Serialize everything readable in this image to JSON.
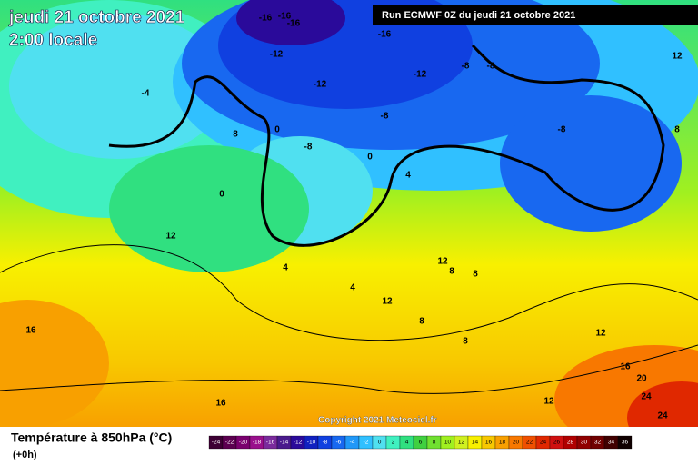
{
  "header": {
    "date": "jeudi 21 octobre 2021",
    "time": "2:00 locale",
    "run": "Run ECMWF 0Z du jeudi 21 octobre 2021"
  },
  "copyright": "Copyright 2021 Meteociel.fr",
  "legend": {
    "title": "Température à 850hPa (°C)",
    "step": "(+0h)",
    "ticks": [
      -24,
      -22,
      -20,
      -18,
      -16,
      -14,
      -12,
      -10,
      -8,
      -6,
      -4,
      -2,
      0,
      2,
      4,
      6,
      8,
      10,
      12,
      14,
      16,
      18,
      20,
      22,
      24,
      26,
      28,
      30,
      32,
      34,
      36
    ],
    "colors": [
      "#3d0033",
      "#5c0050",
      "#7a006e",
      "#99108c",
      "#7a2a9c",
      "#4a1a8c",
      "#2a0a9a",
      "#1020c0",
      "#1040e0",
      "#1868f0",
      "#2098f8",
      "#30c0ff",
      "#50e0f0",
      "#40f0c0",
      "#30e080",
      "#40d040",
      "#70e030",
      "#a0f020",
      "#d0f020",
      "#f8f000",
      "#f8c800",
      "#f8a000",
      "#f87800",
      "#f05000",
      "#e02800",
      "#d01010",
      "#b00000",
      "#900000",
      "#700000",
      "#400000",
      "#100000"
    ]
  },
  "contour_labels": [
    "-16",
    "-16",
    "-16",
    "-16",
    "-12",
    "-12",
    "-12",
    "-8",
    "-8",
    "-8",
    "-8",
    "-8",
    "-4",
    "0",
    "0",
    "0",
    "8",
    "12",
    "8",
    "4",
    "4",
    "4",
    "12",
    "12",
    "8",
    "8",
    "12",
    "8",
    "8",
    "16",
    "16",
    "20",
    "24",
    "24",
    "16",
    "12",
    "12"
  ]
}
